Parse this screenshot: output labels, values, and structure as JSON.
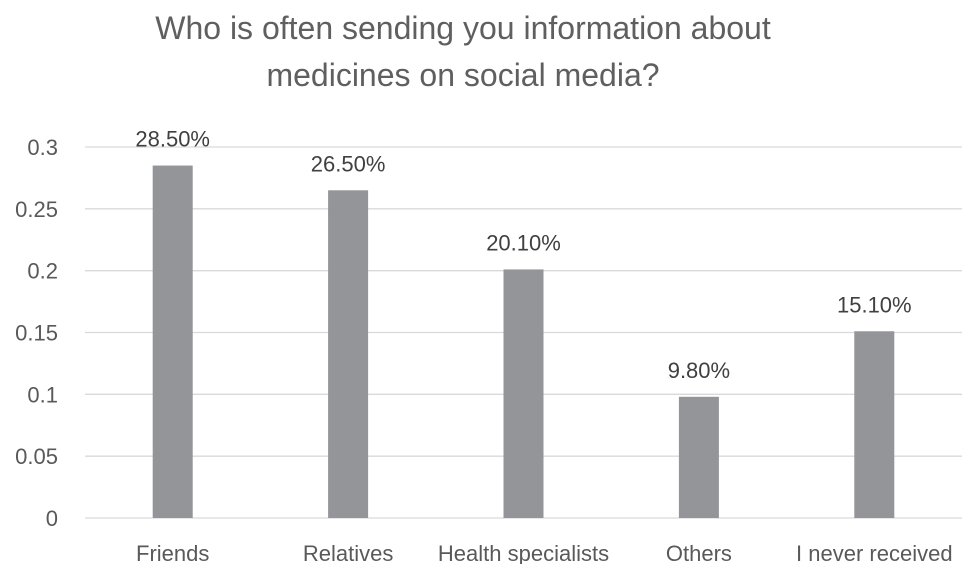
{
  "chart_data": {
    "type": "bar",
    "title": "Who is often sending you information about medicines on social media?",
    "title_lines": [
      "Who is often sending you information about",
      "medicines on social media?"
    ],
    "xlabel": "",
    "ylabel": "",
    "categories": [
      "Friends",
      "Relatives",
      "Health specialists",
      "Others",
      "I never received"
    ],
    "values": [
      0.285,
      0.265,
      0.201,
      0.098,
      0.151
    ],
    "data_labels": [
      "28.50%",
      "26.50%",
      "20.10%",
      "9.80%",
      "15.10%"
    ],
    "ylim": [
      0,
      0.3
    ],
    "yticks": [
      0,
      0.05,
      0.1,
      0.15,
      0.2,
      0.25,
      0.3
    ],
    "ytick_labels": [
      "0",
      "0.05",
      "0.1",
      "0.15",
      "0.2",
      "0.25",
      "0.3"
    ],
    "grid": true,
    "legend": "none",
    "bar_color": "#939598",
    "grid_color": "#d9d9d9"
  }
}
